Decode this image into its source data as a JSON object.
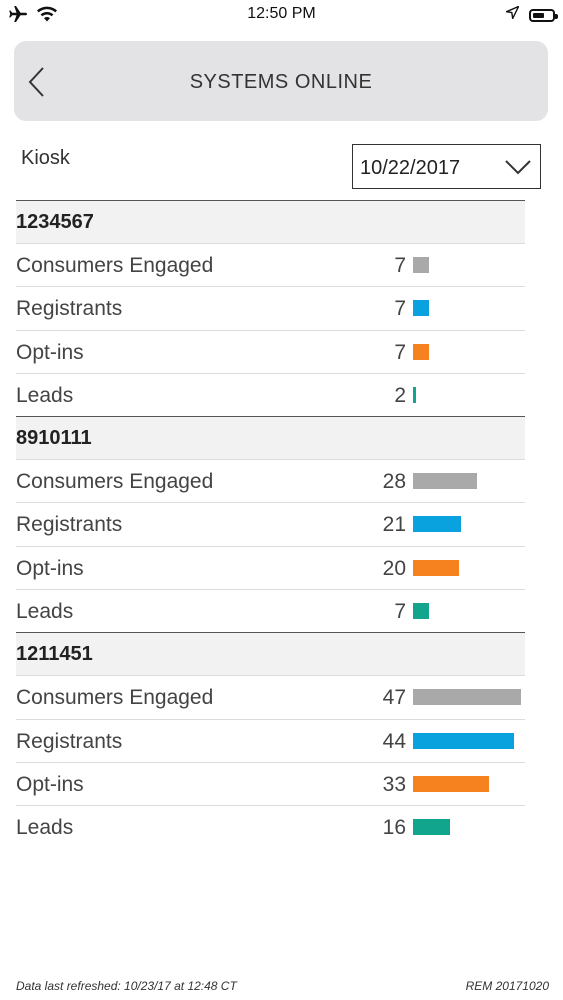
{
  "status_bar": {
    "time": "12:50 PM",
    "icons": [
      "airplane-icon",
      "wifi-icon",
      "location-icon",
      "battery-icon"
    ]
  },
  "header": {
    "title": "SYSTEMS ONLINE",
    "back_icon": "chevron-left-icon"
  },
  "filter": {
    "label": "Kiosk",
    "date": "10/22/2017"
  },
  "colors": {
    "consumers_engaged": "#a9a9a9",
    "registrants": "#0aa2de",
    "opt_ins": "#f5821f",
    "leads": "#11a58e"
  },
  "max_value": 47,
  "groups": [
    {
      "id": "1234567",
      "rows": [
        {
          "label": "Consumers Engaged",
          "value": 7,
          "metric": "consumers_engaged"
        },
        {
          "label": "Registrants",
          "value": 7,
          "metric": "registrants"
        },
        {
          "label": "Opt-ins",
          "value": 7,
          "metric": "opt_ins"
        },
        {
          "label": "Leads",
          "value": 2,
          "metric": "leads"
        }
      ]
    },
    {
      "id": "8910111",
      "rows": [
        {
          "label": "Consumers Engaged",
          "value": 28,
          "metric": "consumers_engaged"
        },
        {
          "label": "Registrants",
          "value": 21,
          "metric": "registrants"
        },
        {
          "label": "Opt-ins",
          "value": 20,
          "metric": "opt_ins"
        },
        {
          "label": "Leads",
          "value": 7,
          "metric": "leads"
        }
      ]
    },
    {
      "id": "1211451",
      "rows": [
        {
          "label": "Consumers Engaged",
          "value": 47,
          "metric": "consumers_engaged"
        },
        {
          "label": "Registrants",
          "value": 44,
          "metric": "registrants"
        },
        {
          "label": "Opt-ins",
          "value": 33,
          "metric": "opt_ins"
        },
        {
          "label": "Leads",
          "value": 16,
          "metric": "leads"
        }
      ]
    }
  ],
  "footer": {
    "refreshed": "Data last refreshed: 10/23/17 at 12:48 CT",
    "version": "REM 20171020"
  }
}
